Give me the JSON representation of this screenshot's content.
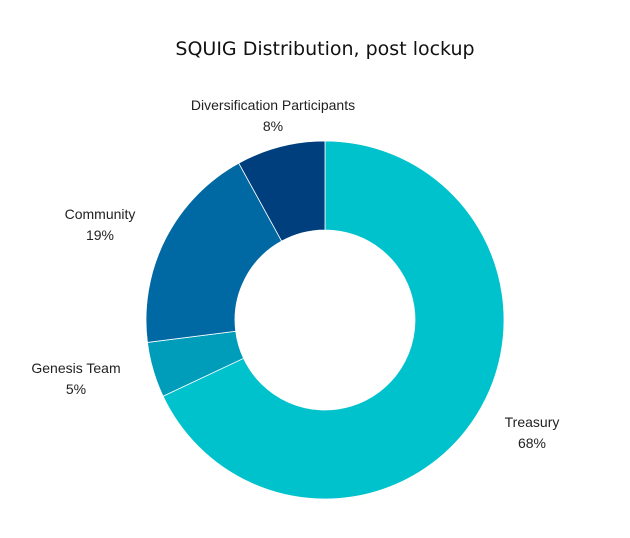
{
  "chart_data": {
    "type": "pie",
    "title": "SQUIG Distribution, post lockup",
    "donut": true,
    "slices": [
      {
        "label": "Treasury",
        "value": 68,
        "value_label": "68%",
        "color": "#00C2CC"
      },
      {
        "label": "Genesis Team",
        "value": 5,
        "value_label": "5%",
        "color": "#009DBA"
      },
      {
        "label": "Community",
        "value": 19,
        "value_label": "19%",
        "color": "#0069A3"
      },
      {
        "label": "Diversification Participants",
        "value": 8,
        "value_label": "8%",
        "color": "#003F7D"
      }
    ]
  }
}
